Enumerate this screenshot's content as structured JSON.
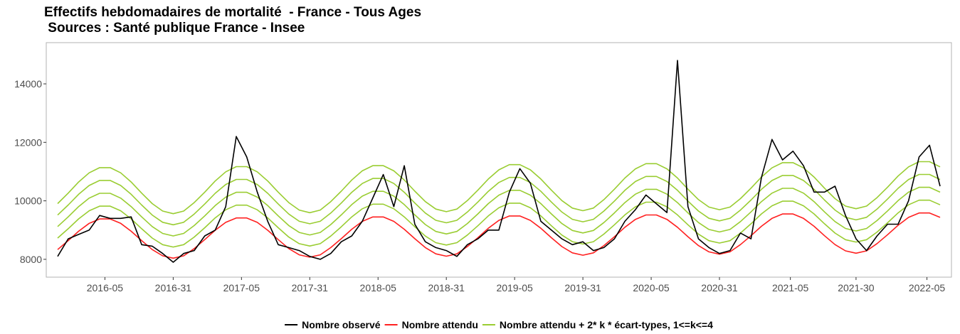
{
  "chart_data": {
    "type": "line",
    "title": "Effectifs hebdomadaires de mortalité  - France - Tous Ages",
    "subtitle": " Sources : Santé publique France - Insee",
    "x": [
      "2015-40",
      "2015-44",
      "2015-48",
      "2015-52",
      "2016-03",
      "2016-07",
      "2016-11",
      "2016-15",
      "2016-19",
      "2016-23",
      "2016-27",
      "2016-31",
      "2016-35",
      "2016-39",
      "2016-43",
      "2016-47",
      "2016-51",
      "2017-03",
      "2017-07",
      "2017-11",
      "2017-15",
      "2017-19",
      "2017-23",
      "2017-27",
      "2017-31",
      "2017-35",
      "2017-39",
      "2017-43",
      "2017-47",
      "2017-51",
      "2018-03",
      "2018-07",
      "2018-11",
      "2018-15",
      "2018-19",
      "2018-23",
      "2018-27",
      "2018-31",
      "2018-35",
      "2018-39",
      "2018-43",
      "2018-47",
      "2018-51",
      "2019-03",
      "2019-07",
      "2019-11",
      "2019-15",
      "2019-19",
      "2019-23",
      "2019-27",
      "2019-31",
      "2019-35",
      "2019-39",
      "2019-43",
      "2019-47",
      "2019-51",
      "2020-03",
      "2020-07",
      "2020-11",
      "2020-15",
      "2020-19",
      "2020-23",
      "2020-27",
      "2020-31",
      "2020-35",
      "2020-39",
      "2020-43",
      "2020-47",
      "2020-51",
      "2021-02",
      "2021-06",
      "2021-10",
      "2021-14",
      "2021-18",
      "2021-22",
      "2021-26",
      "2021-30",
      "2021-34",
      "2021-38",
      "2021-42",
      "2021-46",
      "2021-50",
      "2022-02",
      "2022-06",
      "2022-10"
    ],
    "xticks": [
      "2016-05",
      "2016-31",
      "2017-05",
      "2017-31",
      "2018-05",
      "2018-31",
      "2019-05",
      "2019-31",
      "2020-05",
      "2020-31",
      "2021-05",
      "2021-30",
      "2022-05"
    ],
    "ylim": [
      7390,
      15410
    ],
    "yticks": [
      8000,
      10000,
      12000,
      14000
    ],
    "grid": false,
    "legend": "bottom",
    "series": [
      {
        "name": "Nombre observé",
        "color": "#000000",
        "values": [
          8100,
          8700,
          8850,
          9000,
          9500,
          9400,
          9400,
          9450,
          8500,
          8450,
          8200,
          7900,
          8200,
          8300,
          8800,
          9000,
          9800,
          12200,
          11500,
          10300,
          9300,
          8500,
          8400,
          8300,
          8100,
          8000,
          8200,
          8600,
          8800,
          9300,
          10100,
          10900,
          9800,
          11200,
          9200,
          8600,
          8400,
          8300,
          8100,
          8500,
          8700,
          9000,
          9000,
          10300,
          11100,
          10600,
          9300,
          9000,
          8700,
          8500,
          8600,
          8300,
          8400,
          8700,
          9300,
          9700,
          10200,
          9900,
          9600,
          14800,
          9800,
          8700,
          8400,
          8200,
          8300,
          8900,
          8700,
          10800,
          12100,
          11400,
          11700,
          11200,
          10300,
          10300,
          10500,
          9500,
          8700,
          8300,
          8800,
          9200,
          9200,
          10000,
          11500,
          11900,
          10500
        ]
      },
      {
        "name": "Nombre attendu",
        "color": "#ff2020",
        "values": [
          8334,
          8638,
          8961,
          9229,
          9380,
          9380,
          9229,
          8961,
          8638,
          8334,
          8118,
          8040,
          8118,
          8368,
          8672,
          8995,
          9263,
          9414,
          9414,
          9263,
          8995,
          8672,
          8368,
          8152,
          8074,
          8152,
          8402,
          8706,
          9029,
          9297,
          9448,
          9448,
          9297,
          9029,
          8706,
          8402,
          8186,
          8108,
          8186,
          8436,
          8740,
          9063,
          9331,
          9482,
          9482,
          9331,
          9063,
          8740,
          8436,
          8220,
          8142,
          8220,
          8470,
          8774,
          9097,
          9365,
          9516,
          9516,
          9365,
          9097,
          8774,
          8470,
          8254,
          8176,
          8254,
          8504,
          8808,
          9131,
          9399,
          9550,
          9550,
          9399,
          9131,
          8808,
          8504,
          8288,
          8210,
          8288,
          8538,
          8842,
          9165,
          9433,
          9584,
          9584,
          9433
        ]
      },
      {
        "name": "Nombre attendu + 2* k * écart-types, 1<=k<=4",
        "color": "#9acd32",
        "values": [
          [
            8727,
            9044,
            9382,
            9661,
            9819,
            9819,
            9661,
            9382,
            9044,
            8727,
            8501,
            8420,
            8501,
            8761,
            9078,
            9416,
            9695,
            9853,
            9853,
            9695,
            9416,
            9078,
            8761,
            8535,
            8454,
            8535,
            8795,
            9112,
            9450,
            9729,
            9887,
            9887,
            9729,
            9450,
            9112,
            8795,
            8569,
            8488,
            8569,
            8829,
            9146,
            9484,
            9763,
            9921,
            9921,
            9763,
            9484,
            9146,
            8829,
            8603,
            8522,
            8603,
            8863,
            9180,
            9518,
            9797,
            9955,
            9955,
            9797,
            9518,
            9180,
            8863,
            8637,
            8556,
            8637,
            8897,
            9214,
            9552,
            9831,
            9989,
            9989,
            9831,
            9552,
            9214,
            8897,
            8671,
            8590,
            8671,
            8931,
            9248,
            9586,
            9865,
            10023,
            10023,
            9865
          ],
          [
            9120,
            9450,
            9803,
            10093,
            10258,
            10258,
            10093,
            9803,
            9450,
            9120,
            8884,
            8800,
            8884,
            9154,
            9484,
            9837,
            10127,
            10292,
            10292,
            10127,
            9837,
            9484,
            9154,
            8918,
            8834,
            8918,
            9188,
            9518,
            9871,
            10161,
            10326,
            10326,
            10161,
            9871,
            9518,
            9188,
            8952,
            8868,
            8952,
            9222,
            9552,
            9905,
            10195,
            10360,
            10360,
            10195,
            9905,
            9552,
            9222,
            8986,
            8902,
            8986,
            9256,
            9586,
            9939,
            10229,
            10394,
            10394,
            10229,
            9939,
            9586,
            9256,
            9020,
            8936,
            9020,
            9290,
            9620,
            9973,
            10263,
            10428,
            10428,
            10263,
            9973,
            9620,
            9290,
            9054,
            8970,
            9054,
            9324,
            9654,
            10007,
            10297,
            10462,
            10462,
            10297
          ],
          [
            9513,
            9856,
            10224,
            10525,
            10697,
            10697,
            10525,
            10224,
            9856,
            9513,
            9267,
            9180,
            9267,
            9547,
            9890,
            10258,
            10559,
            10731,
            10731,
            10559,
            10258,
            9890,
            9547,
            9301,
            9214,
            9301,
            9581,
            9924,
            10292,
            10593,
            10765,
            10765,
            10593,
            10292,
            9924,
            9581,
            9335,
            9248,
            9335,
            9615,
            9958,
            10326,
            10627,
            10799,
            10799,
            10627,
            10326,
            9958,
            9615,
            9369,
            9282,
            9369,
            9649,
            9992,
            10360,
            10661,
            10833,
            10833,
            10661,
            10360,
            9992,
            9649,
            9403,
            9316,
            9403,
            9683,
            10026,
            10394,
            10695,
            10867,
            10867,
            10695,
            10394,
            10026,
            9683,
            9437,
            9350,
            9437,
            9717,
            10060,
            10428,
            10729,
            10901,
            10901,
            10729
          ],
          [
            9906,
            10262,
            10645,
            10957,
            11136,
            11136,
            10957,
            10645,
            10262,
            9906,
            9650,
            9560,
            9650,
            9940,
            10296,
            10679,
            10991,
            11170,
            11170,
            10991,
            10679,
            10296,
            9940,
            9684,
            9594,
            9684,
            9974,
            10330,
            10713,
            11025,
            11204,
            11204,
            11025,
            10713,
            10330,
            9974,
            9718,
            9628,
            9718,
            10008,
            10364,
            10747,
            11059,
            11238,
            11238,
            11059,
            10747,
            10364,
            10008,
            9752,
            9662,
            9752,
            10042,
            10398,
            10781,
            11093,
            11272,
            11272,
            11093,
            10781,
            10398,
            10042,
            9786,
            9696,
            9786,
            10076,
            10432,
            10815,
            11127,
            11306,
            11306,
            11127,
            10815,
            10432,
            10076,
            9820,
            9730,
            9820,
            10110,
            10466,
            10849,
            11161,
            11340,
            11340,
            11161
          ]
        ]
      }
    ]
  }
}
